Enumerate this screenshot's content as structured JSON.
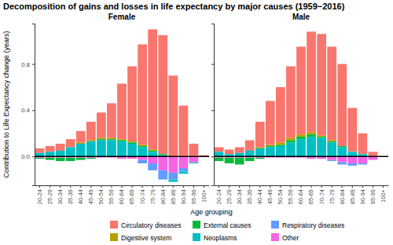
{
  "chart_data": {
    "type": "bar",
    "stacked": true,
    "legend": "bottom",
    "title": "Decomposition of gains and losses in life expectancy by major causes (1959−2016)",
    "x_label": "Age grouping",
    "y_label": "Contribution to Life Expectancy change (years)",
    "categories": [
      "20-24",
      "25-29",
      "30-34",
      "35-39",
      "40-44",
      "45-49",
      "50-54",
      "55-59",
      "60-64",
      "65-69",
      "70-74",
      "75-79",
      "80-84",
      "85-89",
      "90-94",
      "95-99",
      "100+"
    ],
    "ylim": [
      -0.25,
      1.15
    ],
    "yticks": [
      {
        "value": 0,
        "label": "0.0"
      },
      {
        "value": 0.4,
        "label": "0.4"
      },
      {
        "value": 0.8,
        "label": "0.8"
      }
    ],
    "series": [
      {
        "name": "Circulatory diseases",
        "color": "#F8766D"
      },
      {
        "name": "Digestive system",
        "color": "#B79F00"
      },
      {
        "name": "External causes",
        "color": "#00BA38"
      },
      {
        "name": "Neoplasms",
        "color": "#00BFC4"
      },
      {
        "name": "Respiratory diseases",
        "color": "#619CFF"
      },
      {
        "name": "Other",
        "color": "#F564E3"
      }
    ],
    "panels": [
      {
        "title": "Female",
        "values": [
          [
            0.04,
            0.05,
            0.06,
            0.07,
            0.1,
            0.16,
            0.22,
            0.3,
            0.48,
            0.65,
            0.87,
            1.04,
            1.03,
            0.7,
            0.44,
            0.11,
            0.01
          ],
          [
            0,
            0,
            0,
            0,
            0.01,
            0.01,
            0.01,
            0.01,
            0.01,
            0.01,
            0.01,
            0.01,
            0,
            0,
            0,
            0,
            0
          ],
          [
            -0.01,
            -0.02,
            -0.03,
            -0.03,
            -0.02,
            -0.01,
            0.01,
            0.01,
            0.01,
            0.01,
            0.01,
            0.01,
            0.01,
            0,
            0,
            0,
            0
          ],
          [
            0.03,
            0.04,
            0.05,
            0.08,
            0.11,
            0.13,
            0.14,
            0.14,
            0.13,
            0.11,
            0.08,
            0.04,
            0.01,
            -0.02,
            -0.02,
            -0.01,
            0
          ],
          [
            0,
            0,
            0,
            0,
            0,
            0,
            0,
            0,
            0,
            0,
            -0.03,
            -0.06,
            -0.08,
            -0.06,
            -0.03,
            0,
            0
          ],
          [
            -0.01,
            -0.01,
            -0.01,
            -0.01,
            -0.01,
            -0.01,
            -0.01,
            -0.01,
            -0.02,
            -0.02,
            -0.03,
            -0.06,
            -0.12,
            -0.14,
            -0.1,
            -0.05,
            0
          ]
        ]
      },
      {
        "title": "Male",
        "values": [
          [
            0.04,
            0.04,
            0.05,
            0.09,
            0.22,
            0.38,
            0.48,
            0.62,
            0.76,
            0.87,
            0.88,
            0.81,
            0.71,
            0.38,
            0.18,
            0.04,
            0
          ],
          [
            0,
            0,
            0,
            0,
            0.01,
            0.01,
            0.02,
            0.02,
            0.02,
            0.02,
            0.01,
            0.01,
            0,
            0,
            0,
            0,
            0
          ],
          [
            -0.03,
            -0.05,
            -0.06,
            -0.03,
            -0.01,
            0.01,
            0.01,
            0.02,
            0.02,
            0.02,
            0.01,
            0.01,
            0.01,
            0,
            0,
            0,
            0
          ],
          [
            0.04,
            0.02,
            0.03,
            0.05,
            0.07,
            0.08,
            0.09,
            0.12,
            0.15,
            0.17,
            0.16,
            0.12,
            0.08,
            0.04,
            0.02,
            0,
            0
          ],
          [
            0,
            0,
            0,
            0,
            0,
            0,
            0,
            0,
            0,
            0,
            0,
            -0.01,
            -0.02,
            -0.02,
            -0.01,
            0,
            0
          ],
          [
            -0.01,
            -0.01,
            -0.01,
            -0.01,
            -0.01,
            -0.01,
            -0.01,
            -0.01,
            -0.01,
            -0.02,
            -0.02,
            -0.03,
            -0.05,
            -0.06,
            -0.06,
            -0.03,
            0
          ]
        ]
      }
    ]
  }
}
